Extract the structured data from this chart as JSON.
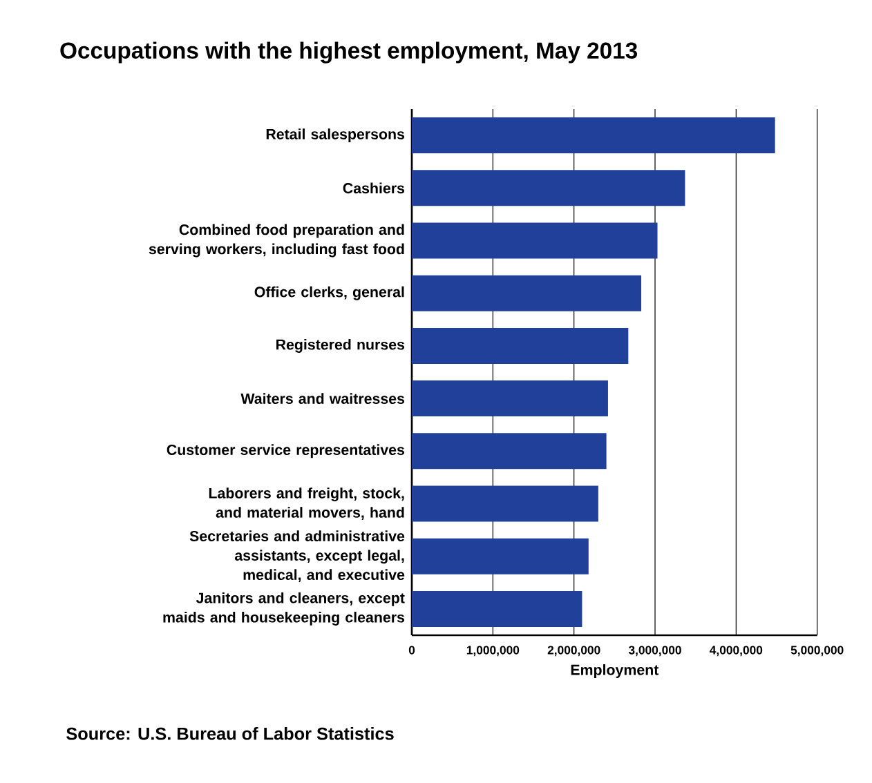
{
  "chart_data": {
    "type": "bar",
    "orientation": "horizontal",
    "title": "Occupations with the highest employment, May 2013",
    "categories": [
      "Retail salespersons",
      "Cashiers",
      "Combined food preparation and serving workers, including fast food",
      "Office clerks, general",
      "Registered nurses",
      "Waiters and waitresses",
      "Customer service representatives",
      "Laborers and freight, stock, and material movers, hand",
      "Secretaries and administrative assistants, except legal, medical, and executive",
      "Janitors and cleaners, except maids and housekeeping cleaners"
    ],
    "values": [
      4480000,
      3370000,
      3030000,
      2830000,
      2670000,
      2420000,
      2400000,
      2300000,
      2180000,
      2100000
    ],
    "color": "#21409a",
    "xlabel": "Employment",
    "xlim": [
      0,
      5000000
    ],
    "xticks": [
      0,
      {
        "value": 1000000,
        "label": "1,000,000"
      },
      {
        "value": 2000000,
        "label": "2,000,000"
      },
      {
        "value": 3000000,
        "label": "3,000,000"
      },
      {
        "value": 4000000,
        "label": "4,000,000"
      },
      {
        "value": 5000000,
        "label": "5,000,000"
      }
    ],
    "grid": "x",
    "annotations": [
      "Source: U.S. Bureau of Labor Statistics"
    ]
  }
}
